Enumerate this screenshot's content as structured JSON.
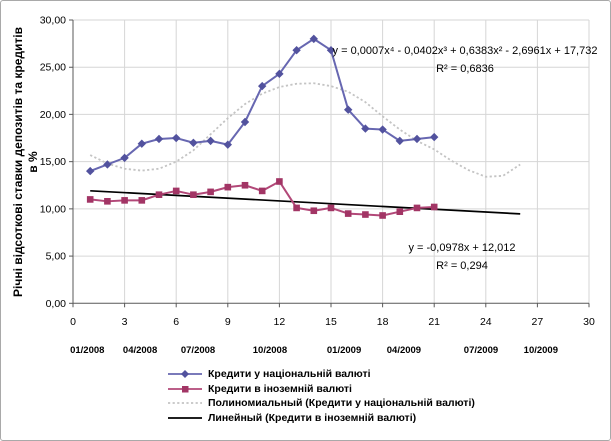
{
  "figure": {
    "y_axis_title_line1": "Річні відсоткові ставки депозитів та кредитів",
    "y_axis_title_line2": "в %"
  },
  "chart_data": {
    "type": "line",
    "title": "",
    "grid": true,
    "legend_position": "bottom",
    "y_axis": {
      "min": 0,
      "max": 30,
      "step": 5,
      "tick_labels": [
        "0,00",
        "5,00",
        "10,00",
        "15,00",
        "20,00",
        "25,00",
        "30,00"
      ]
    },
    "x_axis": {
      "min": 0,
      "max": 30,
      "step": 3,
      "tick_labels": [
        "0",
        "3",
        "6",
        "9",
        "12",
        "15",
        "18",
        "21",
        "24",
        "27",
        "30"
      ]
    },
    "date_axis": {
      "labels": [
        "01/2008",
        "04/2008",
        "07/2008",
        "10/2008",
        "01/2009",
        "04/2009",
        "07/2009",
        "10/2009"
      ],
      "positions": [
        0.83,
        3.9,
        7.27,
        11.45,
        15.76,
        19.24,
        23.72,
        27.2
      ]
    },
    "series": [
      {
        "name": "Кредити у національній валюті",
        "color": "#6767b1",
        "marker": "diamond",
        "marker_color": "#52529e",
        "x": [
          1,
          2,
          3,
          4,
          5,
          6,
          7,
          8,
          9,
          10,
          11,
          12,
          13,
          14,
          15,
          16,
          17,
          18,
          19,
          20,
          21
        ],
        "values": [
          14.0,
          14.7,
          15.4,
          16.9,
          17.4,
          17.5,
          17.0,
          17.2,
          16.8,
          19.2,
          23.0,
          24.3,
          26.8,
          28.0,
          26.8,
          20.5,
          18.5,
          18.4,
          17.2,
          17.4,
          17.6
        ]
      },
      {
        "name": "Кредити в іноземній валюті",
        "color": "#b24878",
        "marker": "square",
        "marker_color": "#a23565",
        "x": [
          1,
          2,
          3,
          4,
          5,
          6,
          7,
          8,
          9,
          10,
          11,
          12,
          13,
          14,
          15,
          16,
          17,
          18,
          19,
          20,
          21
        ],
        "values": [
          11.0,
          10.8,
          10.9,
          10.9,
          11.5,
          11.9,
          11.5,
          11.8,
          12.3,
          12.5,
          11.9,
          12.9,
          10.1,
          9.8,
          10.1,
          9.5,
          9.4,
          9.3,
          9.7,
          10.1,
          10.2
        ]
      }
    ],
    "trendlines": [
      {
        "name": "Полиномиальный (Кредити у національній валюті)",
        "style": "dotted",
        "color": "#c4c4c4",
        "equation": "y = 0,0007x⁴ - 0,0402x³ + 0,6383x² - 2,6961x + 17,732",
        "r_squared": "R² = 0,6836",
        "x": [
          1,
          2,
          3,
          4,
          5,
          6,
          7,
          8,
          9,
          10,
          11,
          12,
          13,
          14,
          15,
          16,
          17,
          18,
          19,
          20,
          21,
          22,
          23,
          24,
          25,
          26
        ],
        "y": [
          15.7,
          14.8,
          14.25,
          14.05,
          14.25,
          15.0,
          16.2,
          17.9,
          19.6,
          21.1,
          22.2,
          22.9,
          23.25,
          23.3,
          23.0,
          22.4,
          21.3,
          19.8,
          18.4,
          17.2,
          16.3,
          15.1,
          14.1,
          13.4,
          13.5,
          14.7
        ]
      },
      {
        "name": "Линейный (Кредити в іноземній валюті)",
        "style": "solid",
        "color": "#000000",
        "equation": "y = -0,0978x + 12,012",
        "r_squared": "R² = 0,294",
        "slope": -0.0978,
        "intercept": 12.012,
        "x_range": [
          1,
          26
        ]
      }
    ],
    "legend": [
      {
        "label": "Кредити у національній валюті",
        "color": "#6767b1",
        "marker": "diamond",
        "marker_color": "#52529e",
        "dash": ""
      },
      {
        "label": "Кредити в іноземній валюті",
        "color": "#b24878",
        "marker": "square",
        "marker_color": "#a23565",
        "dash": ""
      },
      {
        "label": "Полиномиальный (Кредити у національній валюті)",
        "color": "#c4c4c4",
        "marker": "",
        "dash": "2.2 2.4"
      },
      {
        "label": "Линейный (Кредити в іноземній валюті)",
        "color": "#000000",
        "marker": "",
        "dash": ""
      }
    ]
  }
}
